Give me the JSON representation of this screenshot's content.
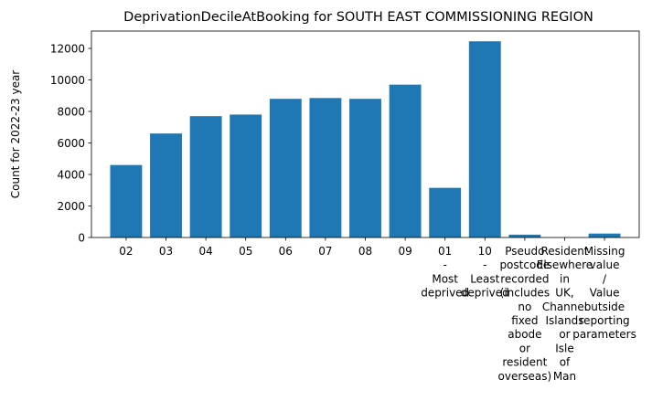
{
  "chart_data": {
    "type": "bar",
    "title": "DeprivationDecileAtBooking for SOUTH EAST COMMISSIONING REGION",
    "xlabel": "",
    "ylabel": "Count for 2022-23 year",
    "ylim": [
      0,
      13100
    ],
    "yticks": [
      0,
      2000,
      4000,
      6000,
      8000,
      10000,
      12000
    ],
    "ytick_labels": [
      "0",
      "2000",
      "4000",
      "6000",
      "8000",
      "10000",
      "12000"
    ],
    "grid": false,
    "bar_color": "#1f77b4",
    "categories": [
      [
        "02"
      ],
      [
        "03"
      ],
      [
        "04"
      ],
      [
        "05"
      ],
      [
        "06"
      ],
      [
        "07"
      ],
      [
        "08"
      ],
      [
        "09"
      ],
      [
        "01",
        "-",
        "Most",
        "deprived"
      ],
      [
        "10",
        "-",
        "Least",
        "deprived"
      ],
      [
        "Pseudo",
        "postcode",
        "recorded",
        "(includes",
        "no",
        "fixed",
        "abode",
        "or",
        "resident",
        "overseas)"
      ],
      [
        "Resident",
        "Elsewhere",
        "in",
        "UK,",
        "Channel",
        "Islands",
        "or",
        "Isle",
        "of",
        "Man"
      ],
      [
        "Missing",
        "value",
        "/",
        "Value",
        "outside",
        "reporting",
        "parameters"
      ]
    ],
    "values": [
      4600,
      6600,
      7700,
      7800,
      8800,
      8850,
      8800,
      9700,
      3150,
      12450,
      180,
      0,
      250
    ]
  }
}
